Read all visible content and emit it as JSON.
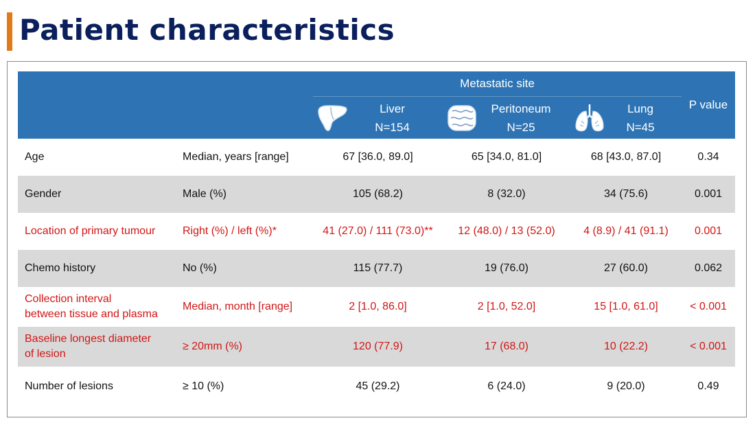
{
  "page": {
    "title": "Patient characteristics"
  },
  "header": {
    "metastatic_site": "Metastatic site",
    "sites": [
      {
        "name": "Liver",
        "n": "N=154",
        "icon": "liver-icon"
      },
      {
        "name": "Peritoneum",
        "n": "N=25",
        "icon": "intestine-icon"
      },
      {
        "name": "Lung",
        "n": "N=45",
        "icon": "lungs-icon"
      }
    ],
    "p_value": "P value"
  },
  "colors": {
    "header_bg": "#2e74b5",
    "title": "#0a1f5c",
    "title_accent": "#e07b1a",
    "highlight_text": "#d11616",
    "row_shade": "#d9d9d9"
  },
  "rows": [
    {
      "label": "Age",
      "measure": "Median, years [range]",
      "liver": "67 [36.0, 89.0]",
      "peritoneum": "65 [34.0, 81.0]",
      "lung": "68 [43.0, 87.0]",
      "p": "0.34"
    },
    {
      "label": "Gender",
      "measure": "Male (%)",
      "liver": "105 (68.2)",
      "peritoneum": "8 (32.0)",
      "lung": "34 (75.6)",
      "p": "0.001"
    },
    {
      "label": "Location of primary tumour",
      "measure": "Right (%) / left (%)*",
      "liver": "41 (27.0) / 111 (73.0)**",
      "peritoneum": "12 (48.0) / 13 (52.0)",
      "lung": "4 (8.9) / 41 (91.1)",
      "p": "0.001"
    },
    {
      "label": "Chemo history",
      "measure": "No (%)",
      "liver": "115 (77.7)",
      "peritoneum": "19 (76.0)",
      "lung": "27 (60.0)",
      "p": "0.062"
    },
    {
      "label_line1": "Collection interval",
      "label_line2": "between tissue and plasma",
      "measure": "Median, month [range]",
      "liver": "2 [1.0, 86.0]",
      "peritoneum": "2 [1.0, 52.0]",
      "lung": "15 [1.0, 61.0]",
      "p": "< 0.001"
    },
    {
      "label_line1": "Baseline longest diameter",
      "label_line2": "of lesion",
      "measure": "≥ 20mm (%)",
      "liver": "120 (77.9)",
      "peritoneum": "17 (68.0)",
      "lung": "10 (22.2)",
      "p": "< 0.001"
    },
    {
      "label": "Number of lesions",
      "measure": "≥ 10 (%)",
      "liver": "45 (29.2)",
      "peritoneum": "6 (24.0)",
      "lung": "9 (20.0)",
      "p": "0.49"
    }
  ]
}
